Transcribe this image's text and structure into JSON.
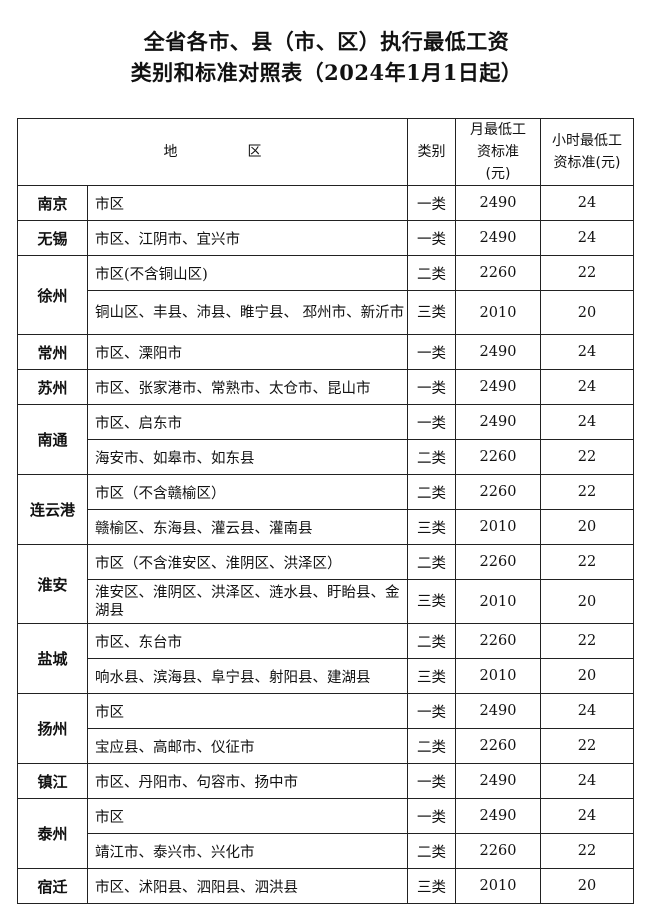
{
  "title": {
    "line1": "全省各市、县（市、区）执行最低工资",
    "line2": "类别和标准对照表（2024年1月1日起）"
  },
  "headers": {
    "area": "地　　　　　区",
    "category": "类别",
    "monthly": "月最低工资标准(元)",
    "hourly": "小时最低工资标准(元)"
  },
  "rows": [
    {
      "city": "南京",
      "entries": [
        {
          "area": "市区",
          "category": "一类",
          "monthly": "2490",
          "hourly": "24"
        }
      ]
    },
    {
      "city": "无锡",
      "entries": [
        {
          "area": "市区、江阴市、宜兴市",
          "category": "一类",
          "monthly": "2490",
          "hourly": "24"
        }
      ]
    },
    {
      "city": "徐州",
      "entries": [
        {
          "area": "市区(不含铜山区)",
          "category": "二类",
          "monthly": "2260",
          "hourly": "22"
        },
        {
          "area": "铜山区、丰县、沛县、睢宁县、 邳州市、新沂市",
          "category": "三类",
          "monthly": "2010",
          "hourly": "20"
        }
      ]
    },
    {
      "city": "常州",
      "entries": [
        {
          "area": "市区、溧阳市",
          "category": "一类",
          "monthly": "2490",
          "hourly": "24"
        }
      ]
    },
    {
      "city": "苏州",
      "entries": [
        {
          "area": "市区、张家港市、常熟市、太仓市、昆山市",
          "category": "一类",
          "monthly": "2490",
          "hourly": "24"
        }
      ]
    },
    {
      "city": "南通",
      "entries": [
        {
          "area": "市区、启东市",
          "category": "一类",
          "monthly": "2490",
          "hourly": "24"
        },
        {
          "area": "海安市、如皋市、如东县",
          "category": "二类",
          "monthly": "2260",
          "hourly": "22"
        }
      ]
    },
    {
      "city": "连云港",
      "entries": [
        {
          "area": "市区（不含赣榆区）",
          "category": "二类",
          "monthly": "2260",
          "hourly": "22"
        },
        {
          "area": "赣榆区、东海县、灌云县、灌南县",
          "category": "三类",
          "monthly": "2010",
          "hourly": "20"
        }
      ]
    },
    {
      "city": "淮安",
      "entries": [
        {
          "area": "市区（不含淮安区、淮阴区、洪泽区）",
          "category": "二类",
          "monthly": "2260",
          "hourly": "22"
        },
        {
          "area": "淮安区、淮阴区、洪泽区、涟水县、盱眙县、金湖县",
          "category": "三类",
          "monthly": "2010",
          "hourly": "20"
        }
      ]
    },
    {
      "city": "盐城",
      "entries": [
        {
          "area": "市区、东台市",
          "category": "二类",
          "monthly": "2260",
          "hourly": "22"
        },
        {
          "area": "响水县、滨海县、阜宁县、射阳县、建湖县",
          "category": "三类",
          "monthly": "2010",
          "hourly": "20"
        }
      ]
    },
    {
      "city": "扬州",
      "entries": [
        {
          "area": "市区",
          "category": "一类",
          "monthly": "2490",
          "hourly": "24"
        },
        {
          "area": "宝应县、高邮市、仪征市",
          "category": "二类",
          "monthly": "2260",
          "hourly": "22"
        }
      ]
    },
    {
      "city": "镇江",
      "entries": [
        {
          "area": "市区、丹阳市、句容市、扬中市",
          "category": "一类",
          "monthly": "2490",
          "hourly": "24"
        }
      ]
    },
    {
      "city": "泰州",
      "entries": [
        {
          "area": "市区",
          "category": "一类",
          "monthly": "2490",
          "hourly": "24"
        },
        {
          "area": "靖江市、泰兴市、兴化市",
          "category": "二类",
          "monthly": "2260",
          "hourly": "22"
        }
      ]
    },
    {
      "city": "宿迁",
      "entries": [
        {
          "area": "市区、沭阳县、泗阳县、泗洪县",
          "category": "三类",
          "monthly": "2010",
          "hourly": "20"
        }
      ]
    }
  ]
}
